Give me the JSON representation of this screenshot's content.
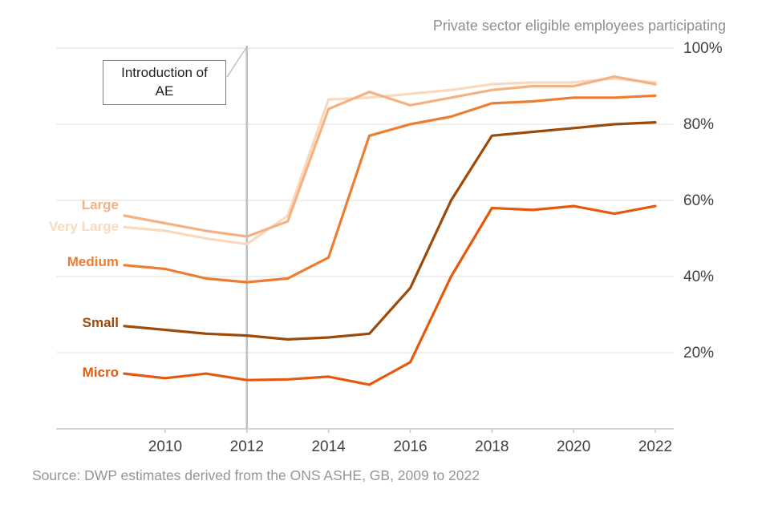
{
  "chart_data": {
    "type": "line",
    "title": "Private sector eligible employees participating",
    "source": "Source: DWP estimates derived from the ONS ASHE, GB, 2009 to 2022",
    "annotation": {
      "line1": "Introduction of",
      "line2": "AE",
      "year": 2012
    },
    "x": [
      2009,
      2010,
      2011,
      2012,
      2013,
      2014,
      2015,
      2016,
      2017,
      2018,
      2019,
      2020,
      2021,
      2022
    ],
    "x_ticks": [
      2010,
      2012,
      2014,
      2016,
      2018,
      2020,
      2022
    ],
    "x_tick_labels": [
      "2010",
      "2012",
      "2014",
      "2016",
      "2018",
      "2020",
      "2022"
    ],
    "y_ticks": [
      20,
      40,
      60,
      80,
      100
    ],
    "y_tick_labels": [
      "20%",
      "40%",
      "60%",
      "80%",
      "100%"
    ],
    "ylim": [
      0,
      100
    ],
    "grid": true,
    "legend_position": "left-of-lines",
    "series": [
      {
        "name": "Large",
        "color": "#F4B183",
        "values": [
          56,
          54,
          52,
          50.5,
          54.5,
          84,
          88.5,
          85,
          87,
          89,
          90,
          90,
          92.5,
          90.5
        ]
      },
      {
        "name": "Very Large",
        "color": "#F9D9BD",
        "values": [
          53,
          52,
          50,
          48.5,
          56,
          86.5,
          87,
          88,
          89,
          90.5,
          91,
          91,
          92,
          91
        ]
      },
      {
        "name": "Medium",
        "color": "#ED7D31",
        "values": [
          43,
          42,
          39.5,
          38.5,
          39.5,
          45,
          77,
          80,
          82,
          85.5,
          86,
          87,
          87,
          87.5
        ]
      },
      {
        "name": "Small",
        "color": "#9C4A0A",
        "values": [
          27,
          26,
          25,
          24.5,
          23.5,
          24,
          25,
          37,
          60,
          77,
          78,
          79,
          80,
          80.5
        ]
      },
      {
        "name": "Micro",
        "color": "#E4590C",
        "values": [
          14.5,
          13.3,
          14.5,
          12.8,
          13,
          13.7,
          11.6,
          17.5,
          40,
          58,
          57.5,
          58.5,
          56.5,
          58.5
        ]
      }
    ],
    "colors": {
      "gridline": "#DCDCDC",
      "axis_line": "#C9C9C9",
      "annotation_line": "#BFBFBF",
      "tick_label": "#404040"
    }
  }
}
